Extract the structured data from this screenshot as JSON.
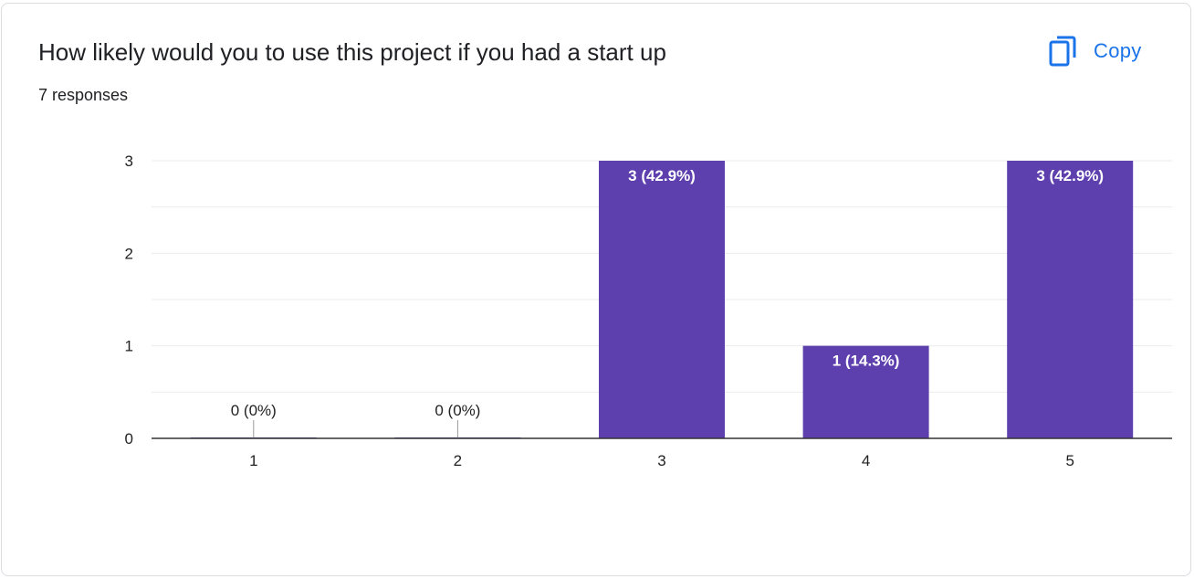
{
  "question": {
    "title": "How likely would you to use this project if you had a start up",
    "responses": "7 responses"
  },
  "toolbar": {
    "copy_label": "Copy",
    "copy_icon": "copy-icon"
  },
  "colors": {
    "bar": "#5e3fae",
    "accent": "#1a73e8",
    "gridline": "#ebebeb",
    "axis": "#333333"
  },
  "chart_data": {
    "type": "bar",
    "categories": [
      "1",
      "2",
      "3",
      "4",
      "5"
    ],
    "values": [
      0,
      0,
      3,
      1,
      3
    ],
    "data_labels": [
      "0 (0%)",
      "0 (0%)",
      "3 (42.9%)",
      "1 (14.3%)",
      "3 (42.9%)"
    ],
    "title": "How likely would you to use this project if you had a start up",
    "xlabel": "",
    "ylabel": "",
    "ylim": [
      0,
      3
    ],
    "yticks": [
      "0",
      "1",
      "2",
      "3"
    ],
    "grid": true
  }
}
